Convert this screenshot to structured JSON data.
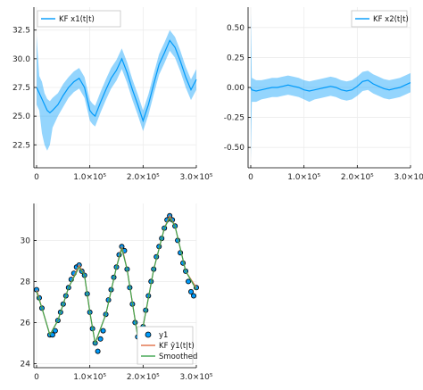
{
  "chart_data": [
    {
      "type": "line",
      "legend_position": "top-left",
      "grid": true,
      "xlim": [
        -5000,
        300000
      ],
      "ylim": [
        20.5,
        34.5
      ],
      "xticks": [
        0,
        100000,
        200000,
        300000
      ],
      "xtick_labels": [
        "0",
        "1.0×10⁵",
        "2.0×10⁵",
        "3.0×10⁵"
      ],
      "yticks": [
        22.5,
        25.0,
        27.5,
        30.0,
        32.5
      ],
      "ytick_labels": [
        "22.5",
        "25.0",
        "27.5",
        "30.0",
        "32.5"
      ],
      "series": [
        {
          "name": "KF x1(t|t)",
          "color": "#009AFA",
          "x": [
            0,
            5000,
            10000,
            15000,
            20000,
            25000,
            30000,
            40000,
            50000,
            60000,
            70000,
            80000,
            90000,
            95000,
            100000,
            105000,
            110000,
            120000,
            130000,
            140000,
            150000,
            160000,
            170000,
            180000,
            190000,
            200000,
            210000,
            220000,
            230000,
            240000,
            250000,
            260000,
            270000,
            280000,
            290000,
            300000
          ],
          "values": [
            27.5,
            27.0,
            26.5,
            26.0,
            25.5,
            25.3,
            25.5,
            26.0,
            26.8,
            27.5,
            28.0,
            28.3,
            27.5,
            26.5,
            25.5,
            25.2,
            25.0,
            26.2,
            27.3,
            28.3,
            29.0,
            30.0,
            28.8,
            27.3,
            26.0,
            24.6,
            26.0,
            27.8,
            29.5,
            30.5,
            31.6,
            31.0,
            29.8,
            28.4,
            27.3,
            28.2
          ],
          "band_low": [
            26.0,
            25.5,
            23.5,
            22.5,
            22.0,
            22.5,
            24.0,
            25.0,
            25.8,
            26.6,
            27.1,
            27.4,
            26.6,
            25.6,
            24.6,
            24.3,
            24.1,
            25.3,
            26.4,
            27.4,
            28.1,
            29.1,
            27.9,
            26.4,
            25.1,
            23.7,
            25.1,
            26.9,
            28.6,
            29.6,
            30.7,
            30.1,
            28.9,
            27.5,
            26.4,
            27.3
          ],
          "band_high": [
            32.0,
            28.5,
            28.0,
            27.0,
            26.5,
            26.3,
            26.6,
            27.0,
            27.8,
            28.4,
            28.9,
            29.2,
            28.4,
            27.4,
            26.4,
            26.1,
            25.9,
            27.1,
            28.2,
            29.2,
            29.9,
            30.9,
            29.7,
            28.2,
            26.9,
            25.5,
            26.9,
            28.7,
            30.4,
            31.4,
            32.5,
            31.9,
            30.7,
            29.3,
            28.2,
            29.1
          ]
        }
      ]
    },
    {
      "type": "line",
      "legend_position": "top-right",
      "grid": true,
      "xlim": [
        -5000,
        300000
      ],
      "ylim": [
        -0.67,
        0.67
      ],
      "xticks": [
        0,
        100000,
        200000,
        300000
      ],
      "xtick_labels": [
        "0",
        "1.0×10⁵",
        "2.0×10⁵",
        "3.0×10⁵"
      ],
      "yticks": [
        -0.5,
        -0.25,
        0.0,
        0.25,
        0.5
      ],
      "ytick_labels": [
        "-0.50",
        "-0.25",
        "0.00",
        "0.25",
        "0.50"
      ],
      "series": [
        {
          "name": "KF x2(t|t)",
          "color": "#009AFA",
          "x": [
            0,
            2000,
            10000,
            20000,
            30000,
            40000,
            50000,
            60000,
            70000,
            80000,
            90000,
            100000,
            110000,
            120000,
            130000,
            140000,
            150000,
            160000,
            170000,
            180000,
            190000,
            200000,
            210000,
            220000,
            230000,
            240000,
            250000,
            260000,
            270000,
            280000,
            290000,
            300000
          ],
          "values": [
            0.0,
            -0.02,
            -0.03,
            -0.02,
            -0.01,
            0.0,
            0.0,
            0.01,
            0.02,
            0.01,
            0.0,
            -0.02,
            -0.03,
            -0.02,
            -0.01,
            0.0,
            0.01,
            0.0,
            -0.02,
            -0.03,
            -0.02,
            0.01,
            0.05,
            0.06,
            0.03,
            0.01,
            -0.01,
            -0.02,
            -0.01,
            0.0,
            0.02,
            0.04
          ],
          "band_low": [
            -0.6,
            -0.12,
            -0.12,
            -0.1,
            -0.09,
            -0.08,
            -0.08,
            -0.07,
            -0.06,
            -0.07,
            -0.08,
            -0.1,
            -0.12,
            -0.1,
            -0.09,
            -0.08,
            -0.07,
            -0.08,
            -0.1,
            -0.11,
            -0.1,
            -0.07,
            -0.03,
            -0.02,
            -0.05,
            -0.07,
            -0.09,
            -0.1,
            -0.09,
            -0.08,
            -0.06,
            -0.04
          ],
          "band_high": [
            0.62,
            0.08,
            0.06,
            0.06,
            0.07,
            0.08,
            0.08,
            0.09,
            0.1,
            0.09,
            0.08,
            0.06,
            0.05,
            0.06,
            0.07,
            0.08,
            0.09,
            0.08,
            0.06,
            0.05,
            0.06,
            0.09,
            0.13,
            0.14,
            0.11,
            0.09,
            0.07,
            0.06,
            0.07,
            0.08,
            0.1,
            0.12
          ]
        }
      ]
    },
    {
      "type": "scatter",
      "legend_position": "bottom-right",
      "grid": true,
      "xlim": [
        -5000,
        300000
      ],
      "ylim": [
        23.8,
        31.8
      ],
      "xticks": [
        0,
        100000,
        200000,
        300000
      ],
      "xtick_labels": [
        "0",
        "1.0×10⁵",
        "2.0×10⁵",
        "3.0×10⁵"
      ],
      "yticks": [
        24,
        26,
        28,
        30
      ],
      "ytick_labels": [
        "24",
        "26",
        "28",
        "30"
      ],
      "series": [
        {
          "name": "y1",
          "kind": "scatter",
          "color": "#009AFA",
          "x": [
            0,
            5000,
            10000,
            25000,
            30000,
            35000,
            40000,
            45000,
            50000,
            55000,
            60000,
            65000,
            70000,
            75000,
            80000,
            85000,
            90000,
            95000,
            100000,
            105000,
            110000,
            115000,
            120000,
            125000,
            130000,
            135000,
            140000,
            145000,
            150000,
            155000,
            160000,
            165000,
            170000,
            175000,
            180000,
            185000,
            190000,
            195000,
            200000,
            205000,
            210000,
            215000,
            220000,
            225000,
            230000,
            235000,
            240000,
            245000,
            250000,
            255000,
            260000,
            265000,
            270000,
            275000,
            280000,
            285000,
            290000,
            295000,
            300000
          ],
          "values": [
            27.6,
            27.2,
            26.7,
            25.4,
            25.4,
            25.6,
            26.1,
            26.5,
            26.9,
            27.3,
            27.7,
            28.1,
            28.4,
            28.7,
            28.8,
            28.5,
            28.3,
            27.4,
            26.5,
            25.7,
            25.0,
            24.6,
            25.2,
            25.6,
            26.4,
            27.1,
            27.6,
            28.2,
            28.7,
            29.3,
            29.7,
            29.5,
            28.6,
            27.7,
            26.9,
            26.0,
            25.3,
            24.8,
            25.8,
            26.6,
            27.3,
            28.0,
            28.6,
            29.2,
            29.7,
            30.1,
            30.6,
            31.0,
            31.2,
            31.0,
            30.7,
            30.0,
            29.4,
            28.9,
            28.5,
            28.0,
            27.5,
            27.3,
            27.7
          ]
        },
        {
          "name": "KF ŷ1(t|t)",
          "kind": "line",
          "color": "#E26F46",
          "x": [
            0,
            10000,
            25000,
            40000,
            60000,
            80000,
            90000,
            100000,
            110000,
            130000,
            150000,
            160000,
            170000,
            190000,
            200000,
            220000,
            240000,
            250000,
            260000,
            280000,
            300000
          ],
          "values": [
            27.6,
            26.7,
            25.4,
            26.1,
            27.7,
            28.8,
            28.3,
            26.5,
            25.0,
            26.4,
            28.7,
            29.7,
            28.6,
            25.3,
            25.8,
            28.6,
            30.6,
            31.2,
            30.7,
            28.5,
            27.7
          ]
        },
        {
          "name": "Smoothed",
          "kind": "line",
          "color": "#3DA44D",
          "x": [
            0,
            10000,
            25000,
            40000,
            60000,
            80000,
            90000,
            100000,
            110000,
            130000,
            150000,
            160000,
            170000,
            190000,
            200000,
            220000,
            240000,
            250000,
            260000,
            280000,
            300000
          ],
          "values": [
            27.5,
            26.7,
            25.4,
            26.1,
            27.7,
            28.7,
            28.3,
            26.5,
            25.0,
            26.4,
            28.7,
            29.6,
            28.6,
            25.3,
            25.8,
            28.6,
            30.6,
            31.1,
            30.7,
            28.5,
            27.6
          ]
        }
      ]
    }
  ]
}
